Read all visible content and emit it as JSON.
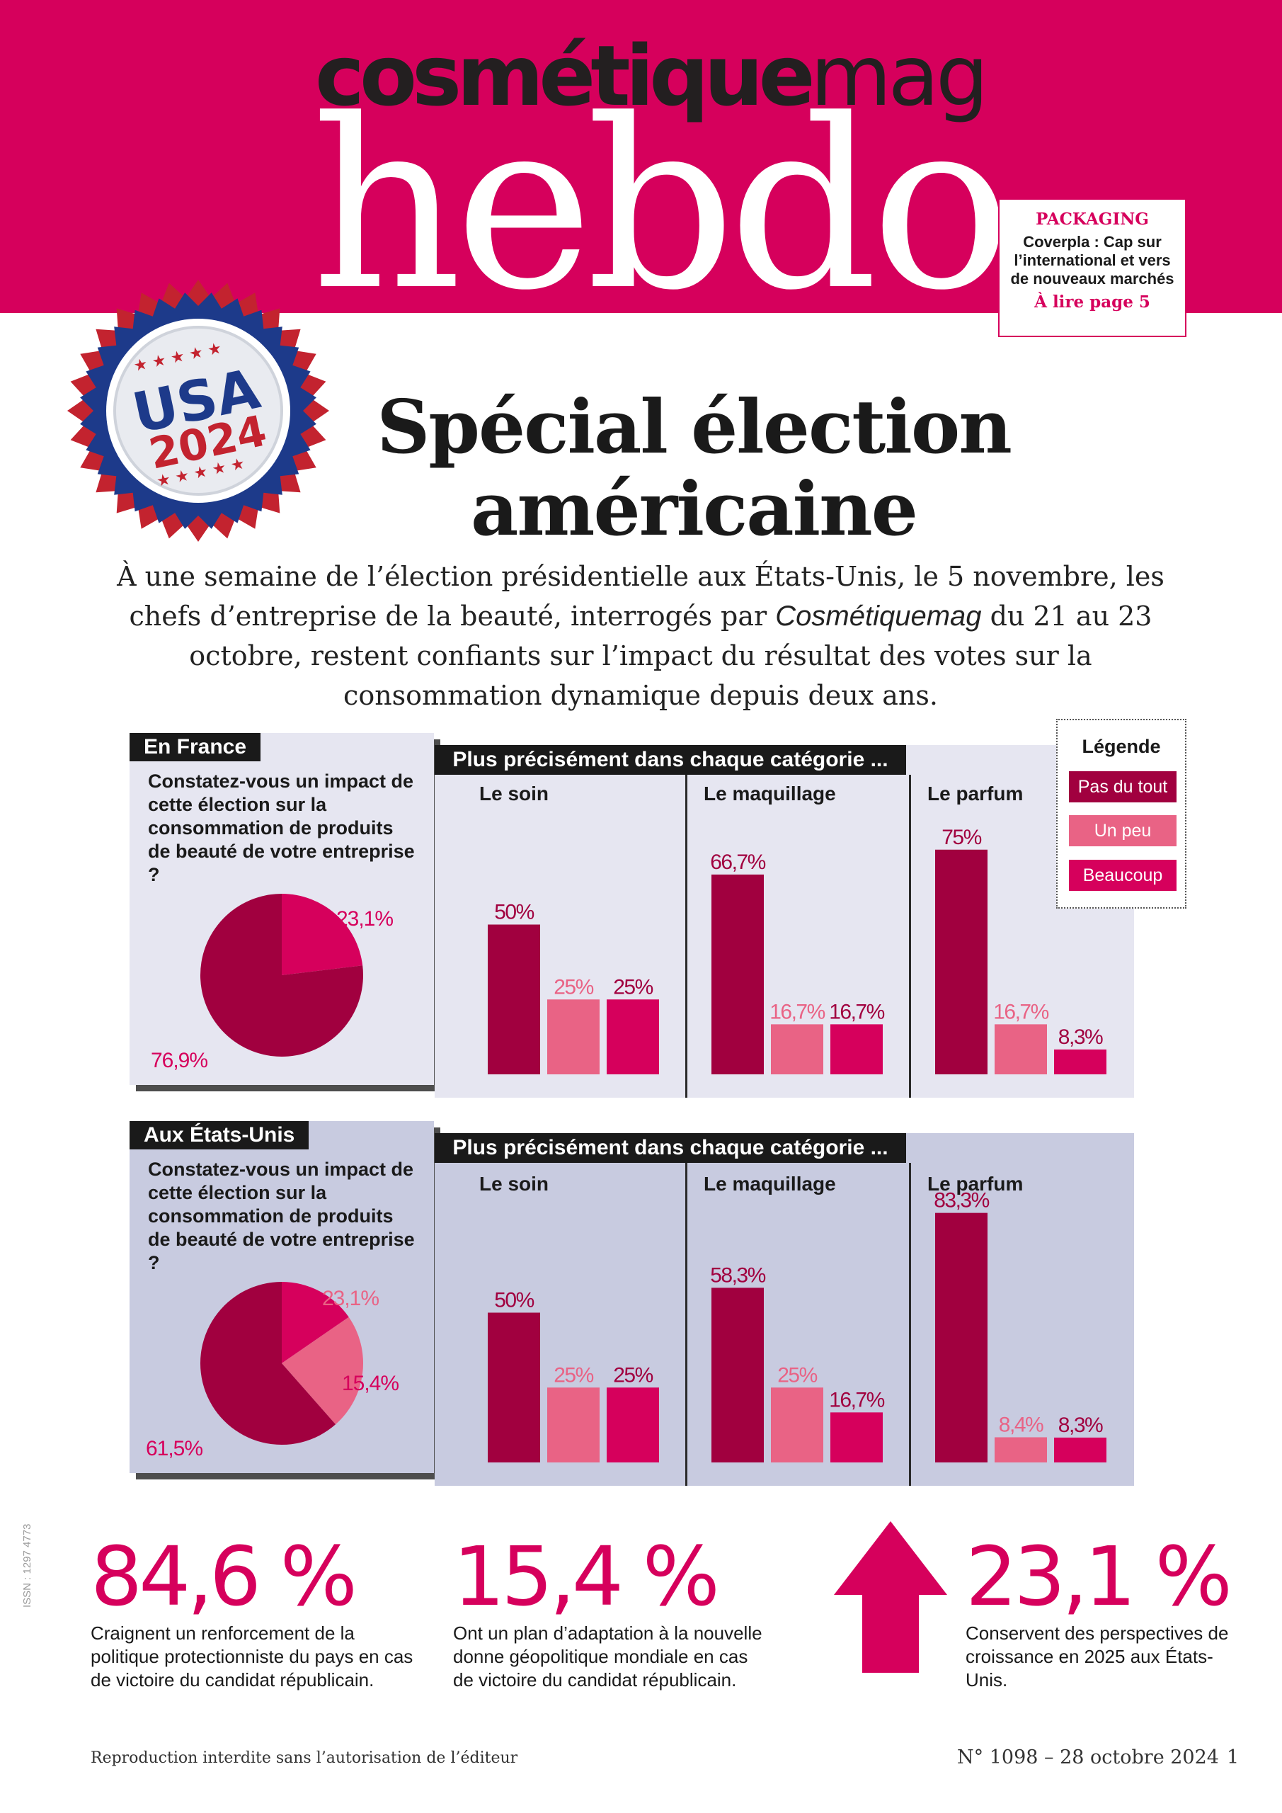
{
  "header": {
    "brand_bold": "cosmétique",
    "brand_light": "mag",
    "title": "hebdo"
  },
  "teaser": {
    "rubric": "PACKAGING",
    "text": "Coverpla : Cap sur l’international et vers de nouveaux marchés",
    "cta": "À lire page 5"
  },
  "badge": {
    "line1": "USA",
    "line2": "2024"
  },
  "main_title": {
    "line1": "Spécial élection",
    "line2": "américaine"
  },
  "intro": {
    "part1": "À une semaine de l’élection présidentielle aux États-Unis, le 5 novembre, les chefs d’entreprise de la beauté, interrogés par",
    "brand": "Cosmétiquemag",
    "part2": "du 21 au 23 octobre, restent confiants sur l’impact du résultat des votes sur la consommation dynamique depuis deux ans."
  },
  "colors": {
    "brand": "#d6005c",
    "pas_du_tout": "#a1003f",
    "un_peu": "#e96385",
    "beaucoup": "#d6005c",
    "panel_france": "#e6e6f1",
    "panel_usa": "#c8cbe0"
  },
  "legend": {
    "title": "Légende",
    "items": [
      "Pas du tout",
      "Un peu",
      "Beaucoup"
    ]
  },
  "panels": [
    {
      "tag": "En France",
      "question": "Constatez-vous un impact de cette élection sur la consommation de produits de beauté de votre entreprise ?",
      "subheading": "Plus précisément dans chaque catégorie ..."
    },
    {
      "tag": "Aux États-Unis",
      "question": "Constatez-vous un impact de cette élection sur la consommation de produits de beauté de votre entreprise ?",
      "subheading": "Plus précisément dans chaque catégorie ..."
    }
  ],
  "chart_data": [
    {
      "type": "pie",
      "panel": "En France",
      "slices": [
        {
          "label": "76,9%",
          "value": 76.9,
          "series": "Pas du tout"
        },
        {
          "label": "23,1%",
          "value": 23.1,
          "series": "Beaucoup"
        }
      ]
    },
    {
      "type": "bar",
      "panel": "En France",
      "categories": [
        "Le soin",
        "Le maquillage",
        "Le parfum"
      ],
      "series": [
        {
          "name": "Pas du tout",
          "values": [
            50,
            66.7,
            75
          ],
          "labels": [
            "50%",
            "66,7%",
            "75%"
          ]
        },
        {
          "name": "Un peu",
          "values": [
            25,
            16.7,
            16.7
          ],
          "labels": [
            "25%",
            "16,7%",
            "16,7%"
          ]
        },
        {
          "name": "Beaucoup",
          "values": [
            25,
            16.7,
            8.3
          ],
          "labels": [
            "25%",
            "16,7%",
            "8,3%"
          ]
        }
      ],
      "ylim": [
        0,
        100
      ]
    },
    {
      "type": "pie",
      "panel": "Aux États-Unis",
      "slices": [
        {
          "label": "61,5%",
          "value": 61.5,
          "series": "Pas du tout"
        },
        {
          "label": "23,1%",
          "value": 23.1,
          "series": "Un peu"
        },
        {
          "label": "15,4%",
          "value": 15.4,
          "series": "Beaucoup"
        }
      ]
    },
    {
      "type": "bar",
      "panel": "Aux États-Unis",
      "categories": [
        "Le soin",
        "Le maquillage",
        "Le parfum"
      ],
      "series": [
        {
          "name": "Pas du tout",
          "values": [
            50,
            58.3,
            83.3
          ],
          "labels": [
            "50%",
            "58,3%",
            "83,3%"
          ]
        },
        {
          "name": "Un peu",
          "values": [
            25,
            25,
            8.4
          ],
          "labels": [
            "25%",
            "25%",
            "8,4%"
          ]
        },
        {
          "name": "Beaucoup",
          "values": [
            25,
            16.7,
            8.3
          ],
          "labels": [
            "25%",
            "16,7%",
            "8,3%"
          ]
        }
      ],
      "ylim": [
        0,
        100
      ]
    }
  ],
  "stats": [
    {
      "value": "84,6 %",
      "text": "Craignent un renforcement de la politique protectionniste du pays en cas de victoire du candidat républicain."
    },
    {
      "value": "15,4 %",
      "text": "Ont un plan d’adaptation à la nouvelle donne géopolitique mondiale en cas de victoire du candidat républicain."
    },
    {
      "value": "23,1 %",
      "text": "Conservent des perspectives de croissance en 2025 aux États-Unis."
    }
  ],
  "footer": {
    "issn": "ISSN : 1297 4773",
    "left": "Reproduction interdite sans l’autorisation de l’éditeur",
    "issue": "N° 1098 – 28 octobre 2024",
    "page": "1"
  }
}
